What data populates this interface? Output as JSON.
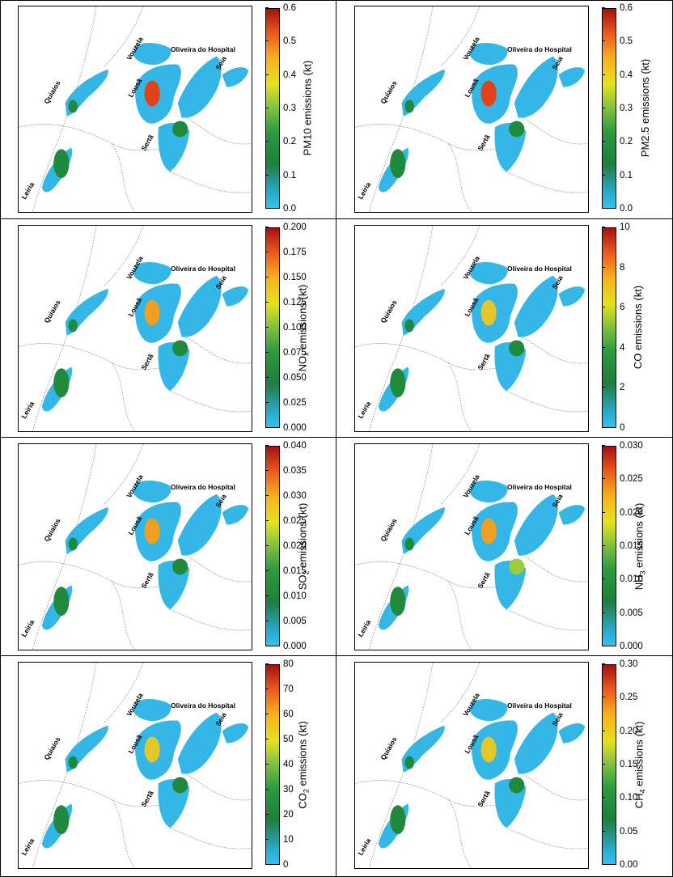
{
  "place_names": {
    "vouzela": "Vouzela",
    "oliveira": "Oliveira do Hospital",
    "seia": "Seia",
    "quiaios": "Quiaios",
    "lousa": "Lousã",
    "serta": "Sertã",
    "leiria": "Leiria"
  },
  "panels": [
    {
      "id": "pm10",
      "label_pre": "PM10",
      "label_sub": "",
      "label_post": " emissions (kt)",
      "ticks": [
        "0.6",
        "0.5",
        "0.4",
        "0.3",
        "0.2",
        "0.1",
        "0.0"
      ],
      "scale": [
        0,
        0.6
      ],
      "hotspots": {
        "lousa": "hot",
        "serta": "green",
        "leiria": "green",
        "quiaios": "green"
      }
    },
    {
      "id": "pm25",
      "label_pre": "PM2.5",
      "label_sub": "",
      "label_post": " emissions (kt)",
      "ticks": [
        "0.6",
        "0.5",
        "0.4",
        "0.3",
        "0.2",
        "0.1",
        "0.0"
      ],
      "scale": [
        0,
        0.6
      ],
      "hotspots": {
        "lousa": "hot",
        "serta": "green",
        "leiria": "green",
        "quiaios": "green"
      }
    },
    {
      "id": "nox",
      "label_pre": "NO",
      "label_sub": "x",
      "label_post": " emissions (kt)",
      "ticks": [
        "0.200",
        "0.175",
        "0.150",
        "0.125",
        "0.100",
        "0.075",
        "0.050",
        "0.025",
        "0.000"
      ],
      "scale": [
        0,
        0.2
      ],
      "hotspots": {
        "lousa": "warm",
        "serta": "green",
        "leiria": "green",
        "quiaios": "green"
      }
    },
    {
      "id": "co",
      "label_pre": "CO",
      "label_sub": "",
      "label_post": " emissions (kt)",
      "ticks": [
        "10",
        "8",
        "6",
        "4",
        "2",
        "0"
      ],
      "scale": [
        0,
        10
      ],
      "hotspots": {
        "lousa": "yellow",
        "serta": "green",
        "leiria": "green",
        "quiaios": "green"
      }
    },
    {
      "id": "so2",
      "label_pre": "SO",
      "label_sub": "2",
      "label_post": " emissions (kt)",
      "ticks": [
        "0.040",
        "0.035",
        "0.030",
        "0.025",
        "0.020",
        "0.015",
        "0.010",
        "0.005",
        "0.000"
      ],
      "scale": [
        0,
        0.04
      ],
      "hotspots": {
        "lousa": "warm",
        "serta": "green",
        "leiria": "green",
        "quiaios": "green"
      }
    },
    {
      "id": "nh3",
      "label_pre": "NH",
      "label_sub": "3",
      "label_post": " emissions (kt)",
      "ticks": [
        "0.030",
        "0.025",
        "0.020",
        "0.015",
        "0.010",
        "0.005",
        "0.000"
      ],
      "scale": [
        0,
        0.03
      ],
      "hotspots": {
        "lousa": "warm",
        "serta": "lime",
        "leiria": "green",
        "quiaios": "green"
      }
    },
    {
      "id": "co2",
      "label_pre": "CO",
      "label_sub": "2",
      "label_post": " emissions (kt)",
      "ticks": [
        "80",
        "70",
        "60",
        "50",
        "40",
        "30",
        "20",
        "10",
        "0"
      ],
      "scale": [
        0,
        80
      ],
      "hotspots": {
        "lousa": "yellow",
        "serta": "green",
        "leiria": "green",
        "quiaios": "green"
      }
    },
    {
      "id": "ch4",
      "label_pre": "CH",
      "label_sub": "4",
      "label_post": " emissions (kt)",
      "ticks": [
        "0.30",
        "0.25",
        "0.20",
        "0.15",
        "0.10",
        "0.05",
        "0.00"
      ],
      "scale": [
        0,
        0.3
      ],
      "hotspots": {
        "lousa": "yellow",
        "serta": "green",
        "leiria": "green",
        "quiaios": "green"
      }
    }
  ],
  "colors": {
    "base": "#34b6e6",
    "green": "#1f8a3c",
    "lime": "#9ccc3a",
    "yellow": "#e2c62a",
    "warm": "#f0a020",
    "hot": "#e0421a",
    "border": "#888888"
  }
}
